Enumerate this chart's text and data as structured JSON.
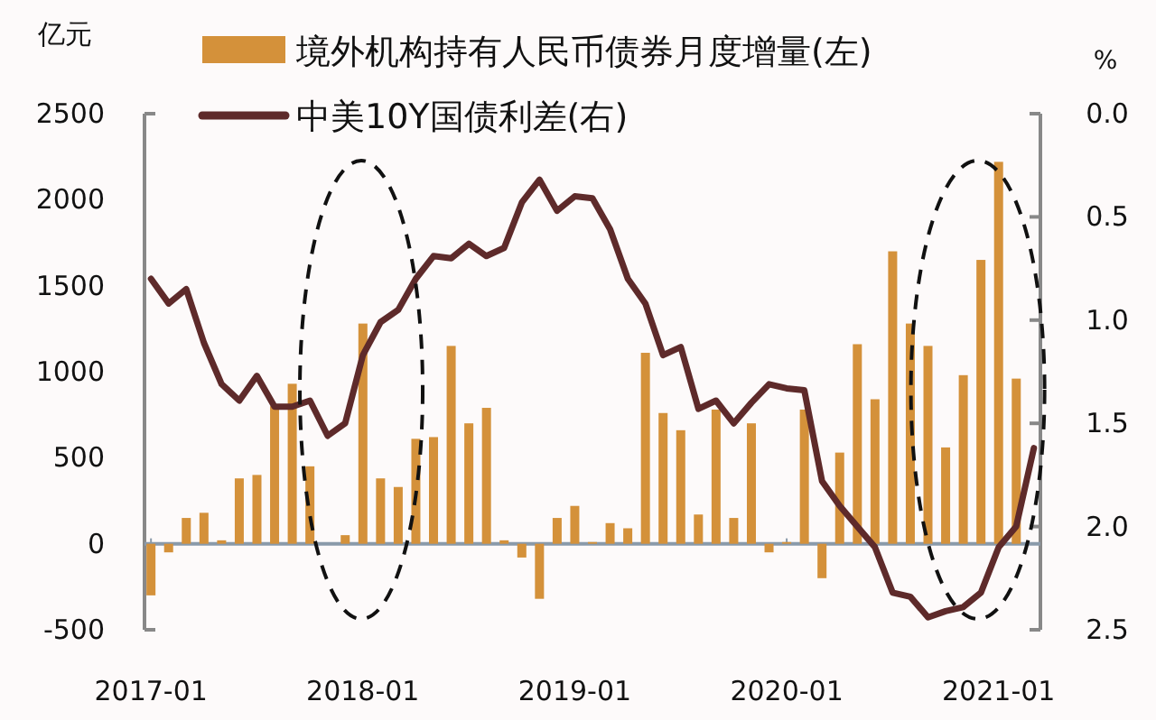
{
  "chart_data": {
    "type": "bar",
    "ylabel": "亿元",
    "y2label": "%",
    "x": [
      "2017-01",
      "2017-02",
      "2017-03",
      "2017-04",
      "2017-05",
      "2017-06",
      "2017-07",
      "2017-08",
      "2017-09",
      "2017-10",
      "2017-11",
      "2017-12",
      "2018-01",
      "2018-02",
      "2018-03",
      "2018-04",
      "2018-05",
      "2018-06",
      "2018-07",
      "2018-08",
      "2018-09",
      "2018-10",
      "2018-11",
      "2018-12",
      "2019-01",
      "2019-02",
      "2019-03",
      "2019-04",
      "2019-05",
      "2019-06",
      "2019-07",
      "2019-08",
      "2019-09",
      "2019-10",
      "2019-11",
      "2019-12",
      "2020-01",
      "2020-02",
      "2020-03",
      "2020-04",
      "2020-05",
      "2020-06",
      "2020-07",
      "2020-08",
      "2020-09",
      "2020-10",
      "2020-11",
      "2020-12",
      "2021-01",
      "2021-02",
      "2021-03"
    ],
    "series": [
      {
        "name": "境外机构持有人民币债券月度增量(左)",
        "color": "#d4913a",
        "values": [
          -300,
          -50,
          150,
          180,
          20,
          380,
          400,
          800,
          930,
          450,
          0,
          50,
          1280,
          380,
          330,
          610,
          620,
          1150,
          700,
          790,
          20,
          -80,
          -320,
          150,
          220,
          10,
          120,
          90,
          1110,
          760,
          660,
          170,
          780,
          150,
          700,
          -50,
          10,
          780,
          -200,
          530,
          1160,
          840,
          1700,
          1280,
          1150,
          560,
          980,
          1650,
          2220,
          960,
          null
        ]
      },
      {
        "name": "中美10Y国债利差(右)",
        "type": "line",
        "axis": "y2",
        "color": "#5e2a2a",
        "values": [
          0.8,
          0.92,
          0.85,
          1.11,
          1.31,
          1.39,
          1.27,
          1.42,
          1.42,
          1.39,
          1.56,
          1.5,
          1.17,
          1.01,
          0.95,
          0.8,
          0.69,
          0.7,
          0.63,
          0.69,
          0.65,
          0.43,
          0.32,
          0.47,
          0.4,
          0.41,
          0.56,
          0.8,
          0.92,
          1.17,
          1.13,
          1.43,
          1.39,
          1.5,
          1.4,
          1.31,
          1.33,
          1.34,
          1.78,
          1.9,
          2.0,
          2.1,
          2.32,
          2.34,
          2.44,
          2.41,
          2.39,
          2.32,
          2.1,
          2.0,
          1.62
        ]
      }
    ],
    "xlim": [
      "2016-12-20",
      "2021-03-12"
    ],
    "xticks": [
      "2017-01",
      "2018-01",
      "2019-01",
      "2020-01",
      "2021-01"
    ],
    "ylim": [
      -500,
      2500
    ],
    "yticks": [
      -500,
      0,
      500,
      1000,
      1500,
      2000,
      2500
    ],
    "y2lim": [
      2.5,
      0.0
    ],
    "y2ticks": [
      {
        "value": 0,
        "label": "0.0"
      },
      {
        "value": 0.5,
        "label": "0.5"
      },
      {
        "value": 1,
        "label": "1.0"
      },
      {
        "value": 1.5,
        "label": "1.5"
      },
      {
        "value": 2,
        "label": "2.0"
      },
      {
        "value": 2.5,
        "label": "2.5"
      }
    ],
    "legend": "top"
  }
}
